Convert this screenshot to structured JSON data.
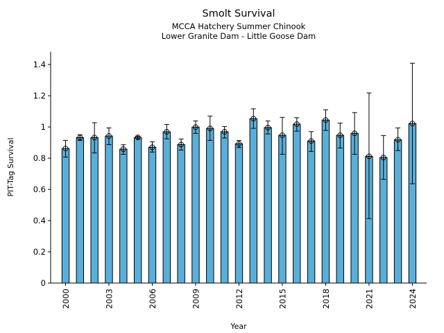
{
  "chart_data": {
    "type": "bar",
    "title": "Smolt Survival",
    "subtitle": [
      "MCCA Hatchery Summer Chinook",
      "Lower Granite Dam - Little Goose Dam"
    ],
    "xlabel": "Year",
    "ylabel": "PIT-Tag Survival",
    "ylim": [
      0,
      1.48
    ],
    "yticks": [
      0,
      0.2,
      0.4,
      0.6,
      0.8,
      1,
      1.2,
      1.4
    ],
    "ytick_labels": [
      "0",
      "0.2",
      "0.4",
      "0.6",
      "0.8",
      "1",
      "1.2",
      "1.4"
    ],
    "xticks": [
      2000,
      2003,
      2006,
      2009,
      2012,
      2015,
      2018,
      2021,
      2024
    ],
    "xtick_labels": [
      "2000",
      "2003",
      "2006",
      "2009",
      "2012",
      "2015",
      "2018",
      "2021",
      "2024"
    ],
    "bar_color": "#5aafd8",
    "categories": [
      2000,
      2001,
      2002,
      2003,
      2004,
      2005,
      2006,
      2007,
      2008,
      2009,
      2010,
      2011,
      2012,
      2013,
      2014,
      2015,
      2016,
      2017,
      2018,
      2019,
      2020,
      2021,
      2022,
      2023,
      2024
    ],
    "series": [
      {
        "name": "Survival",
        "values": [
          0.862,
          0.932,
          0.932,
          0.942,
          0.858,
          0.933,
          0.87,
          0.969,
          0.887,
          0.999,
          0.991,
          0.969,
          0.892,
          1.053,
          0.996,
          0.947,
          1.018,
          0.91,
          1.044,
          0.947,
          0.959,
          0.812,
          0.804,
          0.918,
          1.022
        ],
        "err_low": [
          0.807,
          0.914,
          0.834,
          0.887,
          0.825,
          0.925,
          0.839,
          0.924,
          0.852,
          0.959,
          0.914,
          0.929,
          0.868,
          0.991,
          0.955,
          0.825,
          0.973,
          0.843,
          0.978,
          0.865,
          0.825,
          0.413,
          0.665,
          0.849,
          0.636
        ],
        "err_high": [
          0.914,
          0.95,
          1.027,
          0.994,
          0.886,
          0.94,
          0.905,
          1.016,
          0.923,
          1.039,
          1.07,
          1.003,
          0.913,
          1.116,
          1.039,
          1.061,
          1.059,
          0.97,
          1.11,
          1.025,
          1.092,
          1.218,
          0.945,
          0.994,
          1.408
        ]
      }
    ],
    "grid": false,
    "legend": "none"
  }
}
